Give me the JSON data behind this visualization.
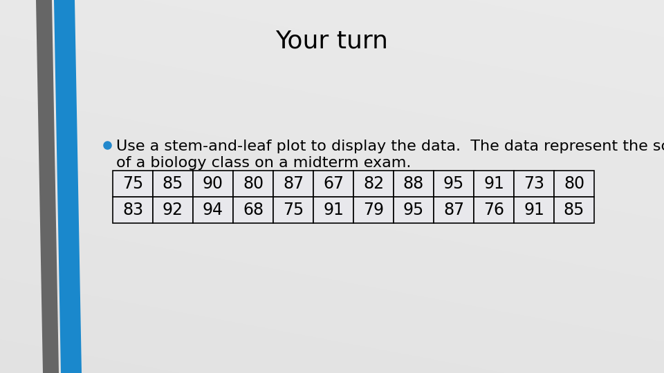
{
  "title": "Your turn",
  "bullet_text_line1": "Use a stem-and-leaf plot to display the data.  The data represent the scores",
  "bullet_text_line2": "of a biology class on a midterm exam.",
  "table_row1": [
    75,
    85,
    90,
    80,
    87,
    67,
    82,
    88,
    95,
    91,
    73,
    80
  ],
  "table_row2": [
    83,
    92,
    94,
    68,
    75,
    91,
    79,
    95,
    87,
    76,
    91,
    85
  ],
  "title_fontsize": 26,
  "body_fontsize": 16,
  "table_fontsize": 17,
  "gray_bar_color": "#666666",
  "blue_bar_color": "#2288cc",
  "title_color": "#000000",
  "body_color": "#000000",
  "bullet_color": "#2288cc",
  "table_border_color": "#000000",
  "bg_light": "#e8e8ec",
  "bg_dark": "#c8c8cc"
}
